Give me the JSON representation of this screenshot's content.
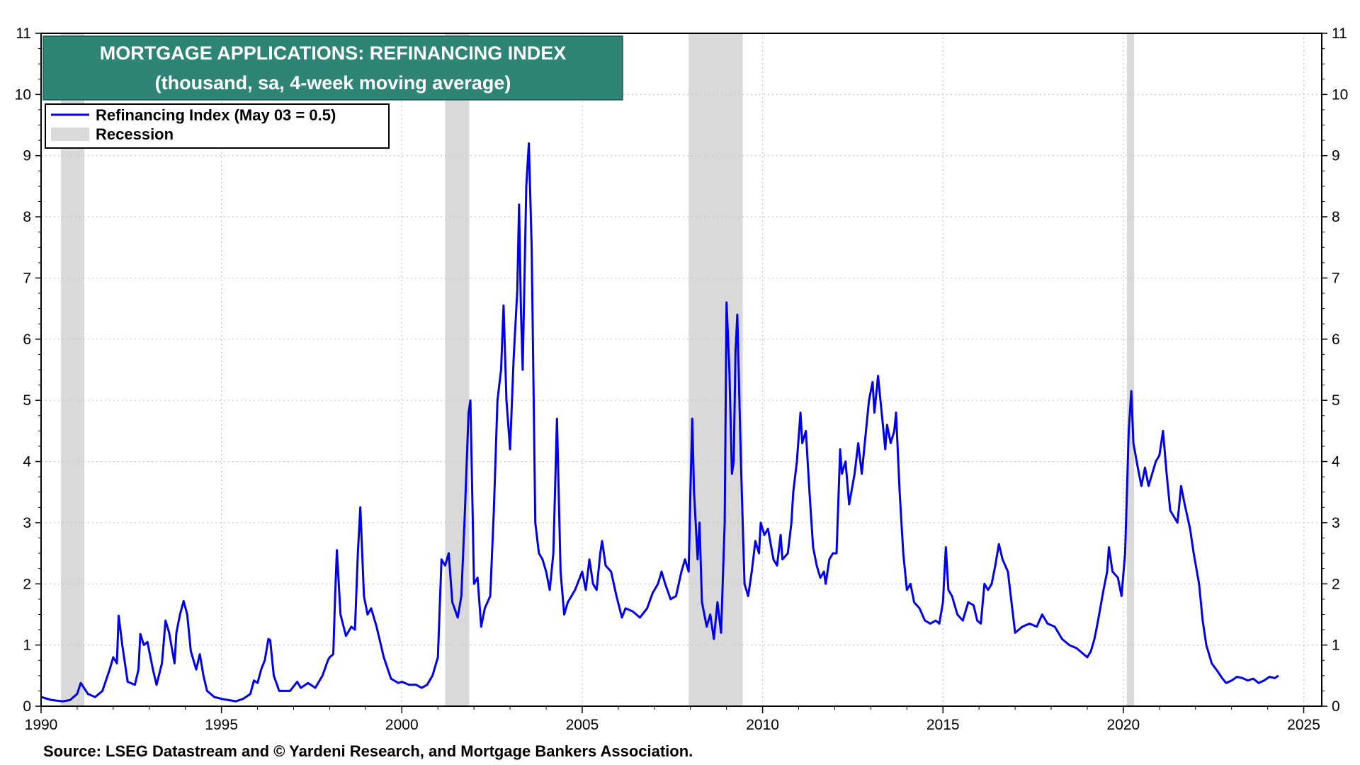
{
  "chart_data": {
    "type": "line",
    "title": "MORTGAGE APPLICATIONS: REFINANCING INDEX",
    "subtitle": "(thousand, sa, 4-week moving average)",
    "source": "Source: LSEG Datastream and © Yardeni Research, and Mortgage Bankers Association.",
    "xlim": [
      1990,
      2025.5
    ],
    "ylim": [
      0,
      11
    ],
    "x_ticks": [
      1990,
      1995,
      2000,
      2005,
      2010,
      2015,
      2020,
      2025
    ],
    "y_ticks": [
      0,
      1,
      2,
      3,
      4,
      5,
      6,
      7,
      8,
      9,
      10,
      11
    ],
    "grid": true,
    "legend_placement": "top-left",
    "legend": [
      {
        "label": "Refinancing Index (May 03 = 0.5)",
        "kind": "line",
        "color": "#0000ee"
      },
      {
        "label": "Recession",
        "kind": "band",
        "color": "#d9d9d9"
      }
    ],
    "recessions": [
      [
        1990.55,
        1991.2
      ],
      [
        2001.2,
        2001.87
      ],
      [
        2007.95,
        2009.45
      ],
      [
        2020.1,
        2020.3
      ]
    ],
    "series": [
      {
        "name": "Refinancing Index (May 03 = 0.5)",
        "color": "#0000ee",
        "points": [
          [
            1990.0,
            0.15
          ],
          [
            1990.3,
            0.1
          ],
          [
            1990.6,
            0.08
          ],
          [
            1990.8,
            0.1
          ],
          [
            1991.0,
            0.2
          ],
          [
            1991.1,
            0.38
          ],
          [
            1991.3,
            0.2
          ],
          [
            1991.5,
            0.15
          ],
          [
            1991.7,
            0.25
          ],
          [
            1991.9,
            0.6
          ],
          [
            1992.0,
            0.8
          ],
          [
            1992.1,
            0.7
          ],
          [
            1992.15,
            1.48
          ],
          [
            1992.25,
            1.0
          ],
          [
            1992.4,
            0.4
          ],
          [
            1992.6,
            0.35
          ],
          [
            1992.7,
            0.6
          ],
          [
            1992.75,
            1.18
          ],
          [
            1992.85,
            1.0
          ],
          [
            1992.95,
            1.05
          ],
          [
            1993.1,
            0.6
          ],
          [
            1993.2,
            0.35
          ],
          [
            1993.35,
            0.7
          ],
          [
            1993.45,
            1.4
          ],
          [
            1993.55,
            1.2
          ],
          [
            1993.7,
            0.7
          ],
          [
            1993.75,
            1.2
          ],
          [
            1993.85,
            1.5
          ],
          [
            1993.95,
            1.72
          ],
          [
            1994.05,
            1.5
          ],
          [
            1994.15,
            0.9
          ],
          [
            1994.3,
            0.6
          ],
          [
            1994.4,
            0.85
          ],
          [
            1994.5,
            0.5
          ],
          [
            1994.6,
            0.25
          ],
          [
            1994.8,
            0.15
          ],
          [
            1995.0,
            0.12
          ],
          [
            1995.2,
            0.1
          ],
          [
            1995.4,
            0.08
          ],
          [
            1995.6,
            0.12
          ],
          [
            1995.8,
            0.2
          ],
          [
            1995.9,
            0.42
          ],
          [
            1996.0,
            0.38
          ],
          [
            1996.1,
            0.6
          ],
          [
            1996.2,
            0.75
          ],
          [
            1996.3,
            1.1
          ],
          [
            1996.35,
            1.08
          ],
          [
            1996.45,
            0.5
          ],
          [
            1996.6,
            0.25
          ],
          [
            1996.9,
            0.25
          ],
          [
            1997.1,
            0.4
          ],
          [
            1997.2,
            0.3
          ],
          [
            1997.4,
            0.38
          ],
          [
            1997.6,
            0.3
          ],
          [
            1997.8,
            0.5
          ],
          [
            1997.95,
            0.75
          ],
          [
            1998.0,
            0.8
          ],
          [
            1998.1,
            0.85
          ],
          [
            1998.15,
            1.8
          ],
          [
            1998.2,
            2.55
          ],
          [
            1998.3,
            1.5
          ],
          [
            1998.45,
            1.15
          ],
          [
            1998.6,
            1.3
          ],
          [
            1998.7,
            1.25
          ],
          [
            1998.78,
            2.5
          ],
          [
            1998.85,
            3.25
          ],
          [
            1998.95,
            1.8
          ],
          [
            1999.05,
            1.5
          ],
          [
            1999.15,
            1.6
          ],
          [
            1999.3,
            1.3
          ],
          [
            1999.5,
            0.8
          ],
          [
            1999.7,
            0.45
          ],
          [
            1999.9,
            0.38
          ],
          [
            2000.0,
            0.4
          ],
          [
            2000.2,
            0.35
          ],
          [
            2000.4,
            0.35
          ],
          [
            2000.55,
            0.3
          ],
          [
            2000.7,
            0.35
          ],
          [
            2000.85,
            0.5
          ],
          [
            2001.0,
            0.8
          ],
          [
            2001.1,
            2.4
          ],
          [
            2001.2,
            2.3
          ],
          [
            2001.3,
            2.5
          ],
          [
            2001.4,
            1.7
          ],
          [
            2001.55,
            1.45
          ],
          [
            2001.65,
            1.8
          ],
          [
            2001.75,
            3.2
          ],
          [
            2001.85,
            4.8
          ],
          [
            2001.9,
            5.0
          ],
          [
            2002.0,
            2.0
          ],
          [
            2002.1,
            2.1
          ],
          [
            2002.2,
            1.3
          ],
          [
            2002.3,
            1.6
          ],
          [
            2002.45,
            1.8
          ],
          [
            2002.55,
            3.2
          ],
          [
            2002.65,
            5.0
          ],
          [
            2002.75,
            5.5
          ],
          [
            2002.82,
            6.55
          ],
          [
            2002.9,
            5.0
          ],
          [
            2003.0,
            4.2
          ],
          [
            2003.1,
            5.7
          ],
          [
            2003.2,
            6.8
          ],
          [
            2003.25,
            8.2
          ],
          [
            2003.3,
            6.5
          ],
          [
            2003.35,
            5.5
          ],
          [
            2003.45,
            8.5
          ],
          [
            2003.52,
            9.2
          ],
          [
            2003.6,
            7.5
          ],
          [
            2003.7,
            3.0
          ],
          [
            2003.8,
            2.5
          ],
          [
            2003.9,
            2.4
          ],
          [
            2004.0,
            2.2
          ],
          [
            2004.1,
            1.9
          ],
          [
            2004.2,
            2.5
          ],
          [
            2004.3,
            4.7
          ],
          [
            2004.4,
            2.2
          ],
          [
            2004.5,
            1.5
          ],
          [
            2004.6,
            1.7
          ],
          [
            2004.8,
            1.9
          ],
          [
            2005.0,
            2.2
          ],
          [
            2005.1,
            1.9
          ],
          [
            2005.2,
            2.4
          ],
          [
            2005.3,
            2.0
          ],
          [
            2005.4,
            1.9
          ],
          [
            2005.5,
            2.5
          ],
          [
            2005.55,
            2.7
          ],
          [
            2005.65,
            2.3
          ],
          [
            2005.8,
            2.2
          ],
          [
            2005.95,
            1.8
          ],
          [
            2006.1,
            1.45
          ],
          [
            2006.2,
            1.6
          ],
          [
            2006.4,
            1.55
          ],
          [
            2006.6,
            1.45
          ],
          [
            2006.8,
            1.6
          ],
          [
            2006.95,
            1.85
          ],
          [
            2007.1,
            2.0
          ],
          [
            2007.2,
            2.2
          ],
          [
            2007.3,
            2.0
          ],
          [
            2007.45,
            1.75
          ],
          [
            2007.6,
            1.8
          ],
          [
            2007.75,
            2.2
          ],
          [
            2007.85,
            2.4
          ],
          [
            2007.95,
            2.2
          ],
          [
            2008.0,
            3.5
          ],
          [
            2008.05,
            4.7
          ],
          [
            2008.1,
            3.5
          ],
          [
            2008.2,
            2.4
          ],
          [
            2008.25,
            3.0
          ],
          [
            2008.32,
            1.7
          ],
          [
            2008.45,
            1.3
          ],
          [
            2008.55,
            1.5
          ],
          [
            2008.65,
            1.1
          ],
          [
            2008.75,
            1.7
          ],
          [
            2008.85,
            1.2
          ],
          [
            2008.95,
            3.0
          ],
          [
            2009.0,
            6.6
          ],
          [
            2009.08,
            5.5
          ],
          [
            2009.15,
            3.8
          ],
          [
            2009.2,
            4.0
          ],
          [
            2009.25,
            5.8
          ],
          [
            2009.3,
            6.4
          ],
          [
            2009.4,
            4.0
          ],
          [
            2009.5,
            2.0
          ],
          [
            2009.6,
            1.8
          ],
          [
            2009.7,
            2.2
          ],
          [
            2009.8,
            2.7
          ],
          [
            2009.9,
            2.5
          ],
          [
            2009.95,
            3.0
          ],
          [
            2010.05,
            2.8
          ],
          [
            2010.15,
            2.9
          ],
          [
            2010.3,
            2.4
          ],
          [
            2010.4,
            2.3
          ],
          [
            2010.5,
            2.8
          ],
          [
            2010.55,
            2.4
          ],
          [
            2010.7,
            2.5
          ],
          [
            2010.8,
            3.0
          ],
          [
            2010.85,
            3.5
          ],
          [
            2010.95,
            4.0
          ],
          [
            2011.05,
            4.8
          ],
          [
            2011.1,
            4.3
          ],
          [
            2011.2,
            4.5
          ],
          [
            2011.3,
            3.5
          ],
          [
            2011.4,
            2.6
          ],
          [
            2011.5,
            2.3
          ],
          [
            2011.6,
            2.1
          ],
          [
            2011.7,
            2.2
          ],
          [
            2011.75,
            2.0
          ],
          [
            2011.85,
            2.4
          ],
          [
            2011.95,
            2.5
          ],
          [
            2012.05,
            2.5
          ],
          [
            2012.15,
            4.2
          ],
          [
            2012.2,
            3.8
          ],
          [
            2012.3,
            4.0
          ],
          [
            2012.4,
            3.3
          ],
          [
            2012.55,
            3.8
          ],
          [
            2012.65,
            4.3
          ],
          [
            2012.75,
            3.8
          ],
          [
            2012.85,
            4.4
          ],
          [
            2012.95,
            5.0
          ],
          [
            2013.05,
            5.3
          ],
          [
            2013.1,
            4.8
          ],
          [
            2013.2,
            5.4
          ],
          [
            2013.3,
            4.8
          ],
          [
            2013.4,
            4.2
          ],
          [
            2013.45,
            4.6
          ],
          [
            2013.55,
            4.3
          ],
          [
            2013.65,
            4.5
          ],
          [
            2013.7,
            4.8
          ],
          [
            2013.8,
            3.5
          ],
          [
            2013.9,
            2.5
          ],
          [
            2014.0,
            1.9
          ],
          [
            2014.1,
            2.0
          ],
          [
            2014.2,
            1.7
          ],
          [
            2014.35,
            1.6
          ],
          [
            2014.5,
            1.4
          ],
          [
            2014.65,
            1.35
          ],
          [
            2014.8,
            1.4
          ],
          [
            2014.9,
            1.35
          ],
          [
            2015.0,
            1.7
          ],
          [
            2015.08,
            2.6
          ],
          [
            2015.15,
            1.9
          ],
          [
            2015.25,
            1.8
          ],
          [
            2015.4,
            1.5
          ],
          [
            2015.55,
            1.4
          ],
          [
            2015.7,
            1.7
          ],
          [
            2015.85,
            1.65
          ],
          [
            2015.95,
            1.4
          ],
          [
            2016.05,
            1.35
          ],
          [
            2016.15,
            2.0
          ],
          [
            2016.25,
            1.9
          ],
          [
            2016.35,
            2.0
          ],
          [
            2016.45,
            2.3
          ],
          [
            2016.55,
            2.65
          ],
          [
            2016.65,
            2.4
          ],
          [
            2016.8,
            2.2
          ],
          [
            2016.9,
            1.7
          ],
          [
            2017.0,
            1.2
          ],
          [
            2017.2,
            1.3
          ],
          [
            2017.4,
            1.35
          ],
          [
            2017.6,
            1.3
          ],
          [
            2017.75,
            1.5
          ],
          [
            2017.9,
            1.35
          ],
          [
            2018.1,
            1.3
          ],
          [
            2018.3,
            1.1
          ],
          [
            2018.5,
            1.0
          ],
          [
            2018.7,
            0.95
          ],
          [
            2018.9,
            0.85
          ],
          [
            2019.0,
            0.8
          ],
          [
            2019.1,
            0.9
          ],
          [
            2019.2,
            1.1
          ],
          [
            2019.3,
            1.4
          ],
          [
            2019.45,
            1.9
          ],
          [
            2019.55,
            2.2
          ],
          [
            2019.6,
            2.6
          ],
          [
            2019.7,
            2.2
          ],
          [
            2019.85,
            2.1
          ],
          [
            2019.95,
            1.8
          ],
          [
            2020.05,
            2.5
          ],
          [
            2020.15,
            4.5
          ],
          [
            2020.22,
            5.15
          ],
          [
            2020.28,
            4.3
          ],
          [
            2020.4,
            3.9
          ],
          [
            2020.5,
            3.6
          ],
          [
            2020.6,
            3.9
          ],
          [
            2020.7,
            3.6
          ],
          [
            2020.8,
            3.8
          ],
          [
            2020.9,
            4.0
          ],
          [
            2021.0,
            4.1
          ],
          [
            2021.1,
            4.5
          ],
          [
            2021.2,
            3.8
          ],
          [
            2021.3,
            3.2
          ],
          [
            2021.4,
            3.1
          ],
          [
            2021.5,
            3.0
          ],
          [
            2021.6,
            3.6
          ],
          [
            2021.7,
            3.3
          ],
          [
            2021.85,
            2.9
          ],
          [
            2021.95,
            2.5
          ],
          [
            2022.1,
            2.0
          ],
          [
            2022.2,
            1.4
          ],
          [
            2022.3,
            1.0
          ],
          [
            2022.45,
            0.7
          ],
          [
            2022.6,
            0.58
          ],
          [
            2022.75,
            0.45
          ],
          [
            2022.85,
            0.38
          ],
          [
            2023.0,
            0.42
          ],
          [
            2023.15,
            0.48
          ],
          [
            2023.3,
            0.46
          ],
          [
            2023.45,
            0.42
          ],
          [
            2023.6,
            0.45
          ],
          [
            2023.75,
            0.38
          ],
          [
            2023.9,
            0.42
          ],
          [
            2024.05,
            0.48
          ],
          [
            2024.2,
            0.46
          ],
          [
            2024.3,
            0.5
          ]
        ]
      }
    ]
  }
}
